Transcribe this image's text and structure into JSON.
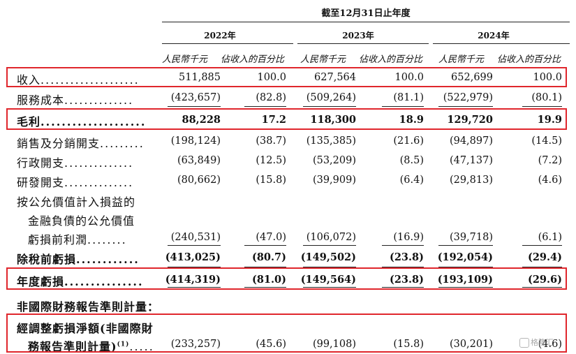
{
  "header": {
    "period": "截至12月31日止年度",
    "years": [
      "2022年",
      "2023年",
      "2024年"
    ],
    "subheaders": [
      "人民幣千元",
      "佔收入的百分比",
      "人民幣千元",
      "佔收入的百分比",
      "人民幣千元",
      "佔收入的百分比"
    ]
  },
  "rows": {
    "revenue": {
      "label": "收入",
      "values": [
        "511,885",
        "100.0",
        "627,564",
        "100.0",
        "652,699",
        "100.0"
      ]
    },
    "cost": {
      "label": "服務成本",
      "values": [
        "(423,657)",
        "(82.8)",
        "(509,264)",
        "(81.1)",
        "(522,979)",
        "(80.1)"
      ]
    },
    "gross": {
      "label": "毛利",
      "values": [
        "88,228",
        "17.2",
        "118,300",
        "18.9",
        "129,720",
        "19.9"
      ]
    },
    "selling": {
      "label": "銷售及分銷開支",
      "values": [
        "(198,124)",
        "(38.7)",
        "(135,385)",
        "(21.6)",
        "(94,897)",
        "(14.5)"
      ]
    },
    "admin": {
      "label": "行政開支",
      "values": [
        "(63,849)",
        "(12.5)",
        "(53,209)",
        "(8.5)",
        "(47,137)",
        "(7.2)"
      ]
    },
    "rnd": {
      "label": "研發開支",
      "values": [
        "(80,662)",
        "(15.8)",
        "(39,909)",
        "(6.4)",
        "(29,813)",
        "(4.6)"
      ]
    },
    "fvloss": {
      "label_line1": "按公允價值計入損益的",
      "label_line2": "金融負債的公允價值",
      "label_line3": "虧損前利潤",
      "values": [
        "(240,531)",
        "(47.0)",
        "(106,072)",
        "(16.9)",
        "(39,718)",
        "(6.1)"
      ]
    },
    "pretax": {
      "label": "除稅前虧損",
      "values": [
        "(413,025)",
        "(80.7)",
        "(149,502)",
        "(23.8)",
        "(192,054)",
        "(29.4)"
      ]
    },
    "annual": {
      "label": "年度虧損",
      "values": [
        "(414,319)",
        "(81.0)",
        "(149,564)",
        "(23.8)",
        "(193,109)",
        "(29.6)"
      ]
    },
    "nonifrs_title": "非國際財務報告準則計量：",
    "adjusted": {
      "label_line1": "經調整虧損淨額(非國際財",
      "label_line2": "務報告準則計量)",
      "footnote": "(1)",
      "values": [
        "(233,257)",
        "(45.6)",
        "(99,108)",
        "(15.8)",
        "(30,201)",
        "(4.6)"
      ]
    }
  },
  "leaders": {
    "revenue": "....................",
    "cost": "..............",
    "gross": "....................",
    "selling": ".........",
    "admin": "..............",
    "rnd": "..............",
    "fvloss": "........",
    "pretax": "............",
    "annual": "...............",
    "adjusted": "....."
  },
  "watermark": "格隆汇",
  "colors": {
    "highlight": "#e0262c"
  }
}
